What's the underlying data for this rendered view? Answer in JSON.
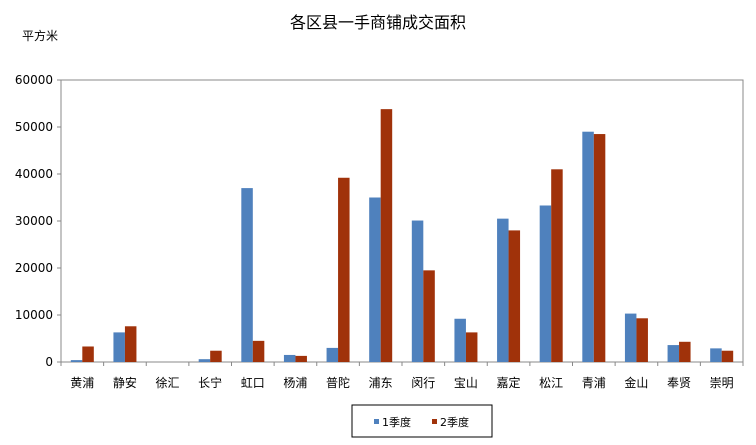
{
  "chart_data": {
    "type": "bar",
    "title": "各区县一手商铺成交面积",
    "ylabel": "平方米",
    "xlabel": "",
    "ylim": [
      0,
      60000
    ],
    "yticks": [
      0,
      10000,
      20000,
      30000,
      40000,
      50000,
      60000
    ],
    "ytick_labels": [
      "0",
      "10000",
      "20000",
      "30000",
      "40000",
      "50000",
      "60000"
    ],
    "grid": false,
    "legend_position": "bottom-center",
    "categories": [
      "黄浦",
      "静安",
      "徐汇",
      "长宁",
      "虹口",
      "杨浦",
      "普陀",
      "浦东",
      "闵行",
      "宝山",
      "嘉定",
      "松江",
      "青浦",
      "金山",
      "奉贤",
      "崇明"
    ],
    "series": [
      {
        "name": "1季度",
        "color": "#4f81bd",
        "values": [
          400,
          6300,
          0,
          600,
          37000,
          1500,
          3000,
          35000,
          30100,
          9200,
          30500,
          33300,
          49000,
          10300,
          3600,
          2900
        ]
      },
      {
        "name": "2季度",
        "color": "#a0320a",
        "values": [
          3300,
          7600,
          0,
          2400,
          4500,
          1300,
          39200,
          53800,
          19500,
          6300,
          28000,
          41000,
          48500,
          9300,
          4300,
          2400
        ]
      }
    ]
  }
}
